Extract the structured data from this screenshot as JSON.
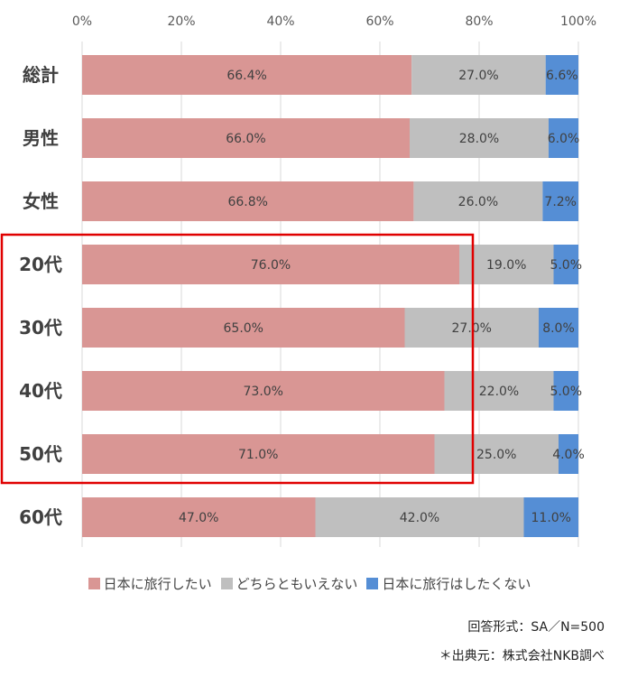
{
  "chart_data": {
    "type": "bar",
    "orientation": "horizontal",
    "stacked": true,
    "categories": [
      "総計",
      "男性",
      "女性",
      "20代",
      "30代",
      "40代",
      "50代",
      "60代"
    ],
    "series": [
      {
        "name": "日本に旅行したい",
        "color": "#d99694",
        "values": [
          66.4,
          66.0,
          66.8,
          76.0,
          65.0,
          73.0,
          71.0,
          47.0
        ]
      },
      {
        "name": "どちらともいえない",
        "color": "#bfbfbf",
        "values": [
          27.0,
          28.0,
          26.0,
          19.0,
          27.0,
          22.0,
          25.0,
          42.0
        ]
      },
      {
        "name": "日本に旅行はしたくない",
        "color": "#558ed5",
        "values": [
          6.6,
          6.0,
          7.2,
          5.0,
          8.0,
          5.0,
          4.0,
          11.0
        ]
      }
    ],
    "xlim": [
      0,
      100
    ],
    "xticks": [
      "0%",
      "20%",
      "40%",
      "60%",
      "80%",
      "100%"
    ],
    "value_format": "percent_one_decimal",
    "grid": true,
    "legend_position": "bottom",
    "highlight": {
      "categories": [
        "20代",
        "30代",
        "40代",
        "50代"
      ],
      "color": "#e00000"
    }
  },
  "notes": {
    "format": "回答形式：SA／N=500",
    "source": "＊出典元：株式会社NKB調べ"
  }
}
